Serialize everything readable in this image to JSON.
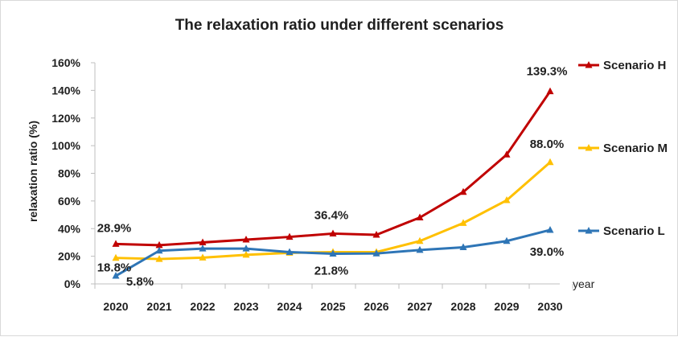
{
  "chart_data": {
    "type": "line",
    "title": "The relaxation ratio under different scenarios",
    "xlabel": "year",
    "ylabel": "relaxation ratio  (%)",
    "ylim": [
      0,
      160
    ],
    "y_ticks": [
      "0%",
      "20%",
      "40%",
      "60%",
      "80%",
      "100%",
      "120%",
      "140%",
      "160%"
    ],
    "categories": [
      "2020",
      "2021",
      "2022",
      "2023",
      "2024",
      "2025",
      "2026",
      "2027",
      "2028",
      "2029",
      "2030"
    ],
    "grid": false,
    "legend_position": "right",
    "series": [
      {
        "name": "Scenario H",
        "color": "#C00000",
        "values": [
          28.9,
          28.0,
          30.0,
          32.0,
          34.0,
          36.4,
          35.5,
          48.0,
          66.5,
          93.5,
          139.3
        ]
      },
      {
        "name": "Scenario M",
        "color": "#FFC000",
        "values": [
          18.8,
          18.0,
          19.0,
          21.0,
          22.5,
          23.0,
          23.0,
          31.0,
          44.0,
          60.5,
          88.0
        ]
      },
      {
        "name": "Scenario L",
        "color": "#2E75B6",
        "values": [
          5.8,
          24.0,
          25.5,
          25.5,
          23.0,
          21.8,
          22.0,
          24.5,
          26.5,
          31.0,
          39.0
        ]
      }
    ],
    "data_labels": [
      {
        "series": "Scenario H",
        "index": 0,
        "text": "28.9%"
      },
      {
        "series": "Scenario H",
        "index": 5,
        "text": "36.4%"
      },
      {
        "series": "Scenario H",
        "index": 10,
        "text": "139.3%"
      },
      {
        "series": "Scenario M",
        "index": 0,
        "text": "18.8%"
      },
      {
        "series": "Scenario M",
        "index": 10,
        "text": "88.0%"
      },
      {
        "series": "Scenario L",
        "index": 0,
        "text": "5.8%"
      },
      {
        "series": "Scenario L",
        "index": 5,
        "text": "21.8%"
      },
      {
        "series": "Scenario L",
        "index": 10,
        "text": "39.0%"
      }
    ]
  }
}
